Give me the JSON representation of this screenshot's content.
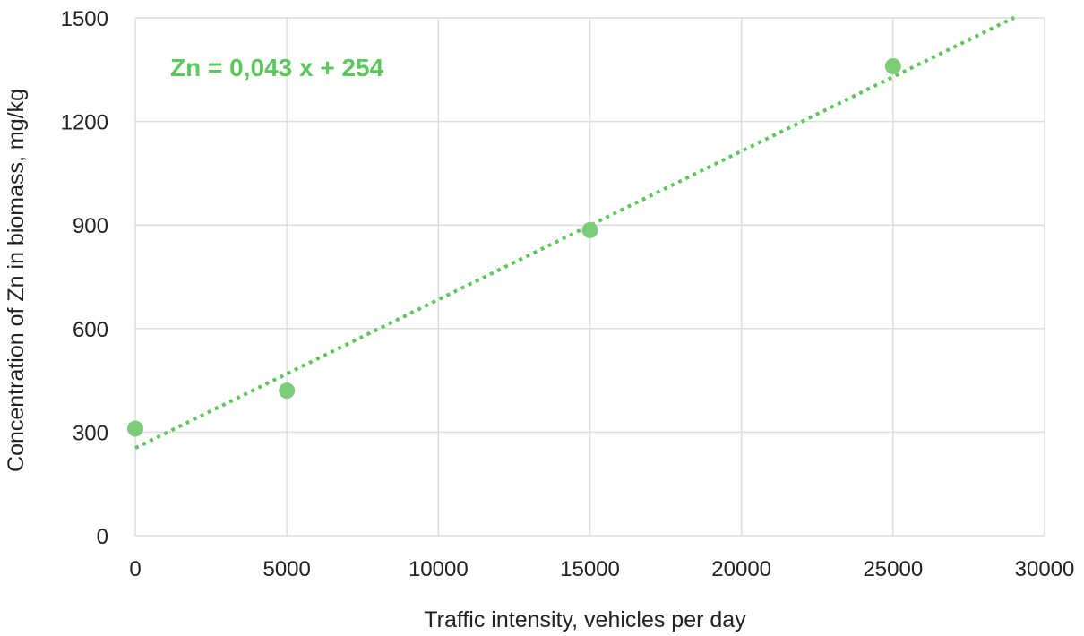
{
  "chart_data": {
    "type": "scatter",
    "title": "",
    "xlabel": "Traffic intensity, vehicles per day",
    "ylabel": "Concentration of Zn in biomass, mg/kg",
    "xlim": [
      0,
      30000
    ],
    "ylim": [
      0,
      1500
    ],
    "x_ticks": [
      "0",
      "5000",
      "10000",
      "15000",
      "20000",
      "25000",
      "30000"
    ],
    "y_ticks": [
      "0",
      "300",
      "600",
      "900",
      "1200",
      "1500"
    ],
    "grid": true,
    "series": [
      {
        "x": [
          0,
          5000,
          15000,
          25000
        ],
        "y": [
          310,
          420,
          885,
          1360
        ],
        "marker": "circle"
      }
    ],
    "trendline": {
      "kind": "linear",
      "slope": 0.043,
      "intercept": 254,
      "x_range": [
        0,
        29000
      ],
      "style": "dotted",
      "label": "Zn = 0,043 x + 254"
    },
    "colors": {
      "series": "#7ccc7c",
      "trendline": "#5cc85c",
      "annotation": "#5cc85c",
      "grid": "#dddddd"
    }
  }
}
